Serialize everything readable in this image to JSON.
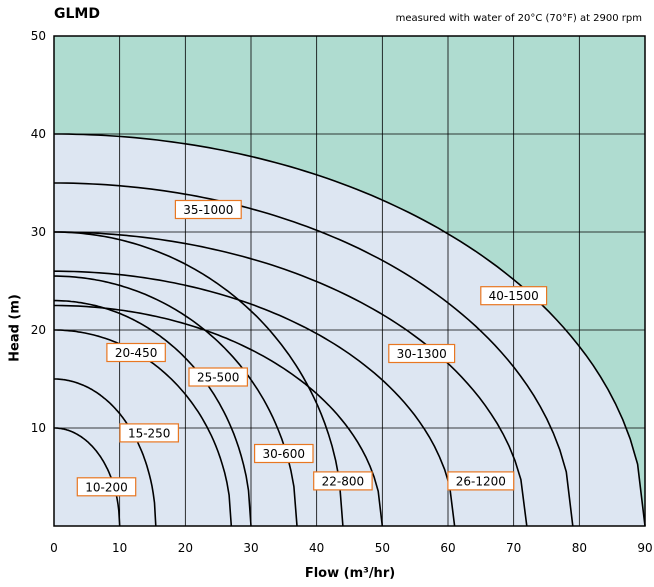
{
  "chart_data": {
    "type": "line",
    "title": "GLMD",
    "note": "measured with water of 20°C (70°F) at 2900 rpm",
    "xlabel": "Flow (m³/hr)",
    "ylabel": "Head (m)",
    "xlim": [
      0,
      90
    ],
    "ylim": [
      0,
      50
    ],
    "xticks": [
      0,
      10,
      20,
      30,
      40,
      50,
      60,
      70,
      80,
      90
    ],
    "yticks": [
      10,
      20,
      30,
      40,
      50
    ],
    "grid": true,
    "colors": {
      "operating_region": "#dde6f2",
      "outside_region": "#afdcd0",
      "curve": "#000000",
      "label_border": "#e87722",
      "grid": "#000000"
    },
    "series": [
      {
        "name": "10-200",
        "head0": 10,
        "flow_max": 10,
        "label_at": [
          8,
          4
        ]
      },
      {
        "name": "15-250",
        "head0": 15,
        "flow_max": 15.5,
        "label_at": [
          14.5,
          9.5
        ]
      },
      {
        "name": "20-450",
        "head0": 20,
        "flow_max": 27,
        "label_at": [
          12.5,
          17.7
        ]
      },
      {
        "name": "25-500",
        "head0": 23,
        "flow_max": 30,
        "label_at": [
          25,
          15.2
        ]
      },
      {
        "name": "30-600",
        "head0": 25.5,
        "flow_max": 37,
        "label_at": [
          35,
          7.4
        ]
      },
      {
        "name": "22-800",
        "head0": 22.5,
        "flow_max": 50,
        "label_at": [
          44,
          4.6
        ]
      },
      {
        "name": "26-1200",
        "head0": 26,
        "flow_max": 61,
        "label_at": [
          65,
          4.6
        ]
      },
      {
        "name": "30-1300",
        "head0": 30,
        "flow_max": 72,
        "label_at": [
          56,
          17.6
        ]
      },
      {
        "name": "35-1000",
        "head0": 35,
        "flow_max": 79,
        "label_at": [
          23.5,
          32.3
        ]
      },
      {
        "name": "40-1500",
        "head0": 40,
        "flow_max": 90,
        "label_at": [
          70,
          23.5
        ]
      }
    ],
    "extra_curve": {
      "head0": 30,
      "flow_max": 44
    }
  }
}
